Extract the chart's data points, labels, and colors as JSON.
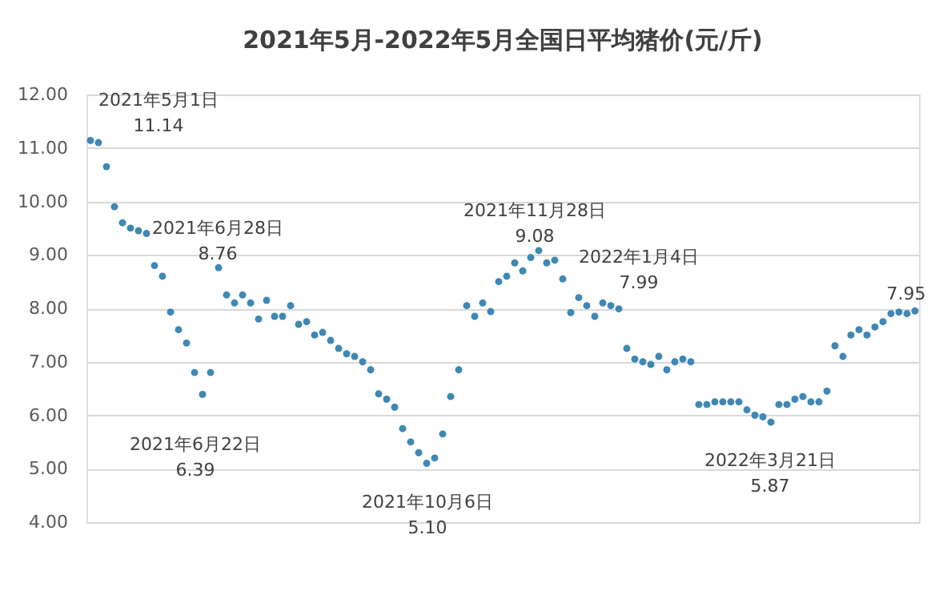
{
  "chart_data": {
    "type": "scatter",
    "title": "2021年5月-2022年5月全国日平均猪价(元/斤)",
    "categories": [
      null,
      null,
      null,
      null,
      null,
      null,
      null,
      null,
      null,
      null,
      null,
      null,
      null,
      null,
      null,
      null,
      null,
      null,
      null,
      null,
      null,
      null,
      null,
      null,
      null,
      null,
      null,
      null,
      null,
      null,
      null,
      null,
      null,
      null,
      null,
      null,
      null,
      null,
      null,
      null,
      null,
      null,
      null,
      null,
      null,
      null,
      null,
      null,
      null,
      null,
      null,
      null,
      null,
      null,
      null,
      null,
      null,
      null,
      null,
      null,
      null,
      null,
      null,
      null,
      null,
      null,
      null,
      null,
      null,
      null,
      null,
      null,
      null,
      null,
      null,
      null,
      null,
      null,
      null,
      null,
      null,
      null,
      null,
      null,
      null,
      null,
      null,
      null,
      null,
      null,
      null,
      null,
      null,
      null,
      null,
      null,
      null,
      null,
      null,
      null,
      null,
      null,
      null,
      null
    ],
    "values": [
      11.14,
      11.1,
      10.65,
      9.9,
      9.6,
      9.5,
      9.45,
      9.4,
      8.8,
      8.6,
      7.93,
      7.6,
      7.35,
      6.8,
      6.39,
      6.8,
      8.76,
      8.25,
      8.1,
      8.25,
      8.1,
      7.8,
      8.15,
      7.85,
      7.85,
      8.05,
      7.7,
      7.75,
      7.5,
      7.55,
      7.4,
      7.25,
      7.15,
      7.1,
      7.0,
      6.85,
      6.4,
      6.3,
      6.15,
      5.75,
      5.5,
      5.3,
      5.1,
      5.2,
      5.65,
      6.35,
      6.85,
      8.05,
      7.85,
      8.1,
      7.94,
      8.5,
      8.6,
      8.85,
      8.7,
      8.95,
      9.08,
      8.85,
      8.9,
      8.55,
      7.92,
      8.2,
      8.05,
      7.85,
      8.1,
      8.05,
      7.99,
      7.25,
      7.05,
      7.0,
      6.95,
      7.1,
      6.85,
      7.0,
      7.05,
      7.0,
      6.2,
      6.2,
      6.25,
      6.25,
      6.25,
      6.25,
      6.1,
      6.0,
      5.97,
      5.87,
      6.2,
      6.2,
      6.3,
      6.35,
      6.25,
      6.25,
      6.45,
      7.3,
      7.1,
      7.5,
      7.6,
      7.5,
      7.65,
      7.75,
      7.9,
      7.93,
      7.9,
      7.95
    ],
    "color": "#3f87b4",
    "marker": "circle",
    "ylim": [
      4,
      12
    ],
    "yticks": [
      {
        "value": 4,
        "label": "4.00"
      },
      {
        "value": 5,
        "label": "5.00"
      },
      {
        "value": 6,
        "label": "6.00"
      },
      {
        "value": 7,
        "label": "7.00"
      },
      {
        "value": 8,
        "label": "8.00"
      },
      {
        "value": 9,
        "label": "9.00"
      },
      {
        "value": 10,
        "label": "10.00"
      },
      {
        "value": 11,
        "label": "11.00"
      },
      {
        "value": 12,
        "label": "12.00"
      }
    ],
    "grid": "y",
    "legend": false,
    "annotations": [
      "2021年5月1日\n11.14",
      "2021年6月28日\n8.76",
      "2021年6月22日\n6.39",
      "2021年10月6日\n5.10",
      "2021年11月28日\n9.08",
      "2022年1月4日\n7.99",
      "2022年3月21日\n5.87",
      "7.95"
    ]
  }
}
